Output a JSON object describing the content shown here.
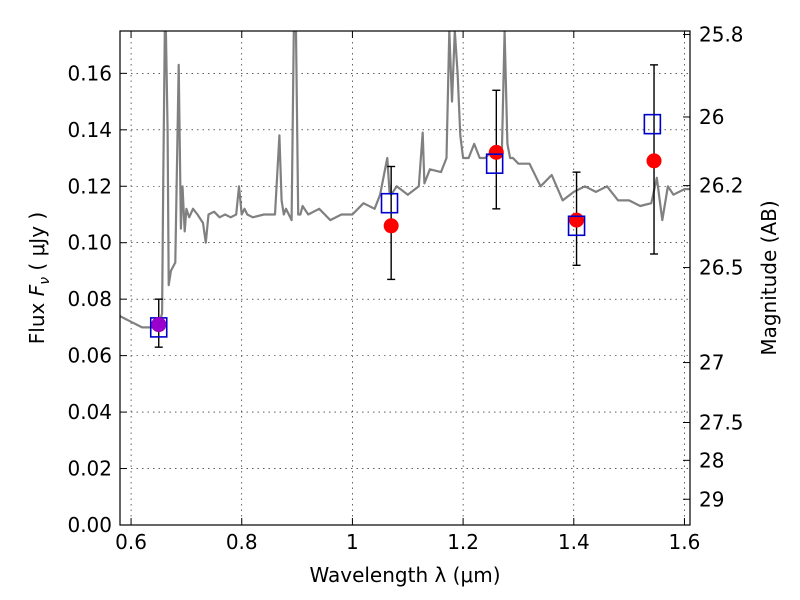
{
  "chart_data": {
    "type": "scatter",
    "xlabel": "Wavelength  λ (μm)",
    "ylabel": "Flux  F_ν  ( μJy )",
    "ylabel_parts": {
      "prefix": "Flux ",
      "f": "F",
      "nu": "ν",
      "suffix": "  ( μJy )"
    },
    "y2label": "Magnitude (AB)",
    "xlim": [
      0.58,
      1.61
    ],
    "ylim": [
      0.0,
      0.175
    ],
    "grid": true,
    "x_ticks": [
      0.6,
      0.8,
      1.0,
      1.2,
      1.4,
      1.6
    ],
    "x_tick_labels": [
      "0.6",
      "0.8",
      "1",
      "1.2",
      "1.4",
      "1.6"
    ],
    "y_ticks": [
      0.0,
      0.02,
      0.04,
      0.06,
      0.08,
      0.1,
      0.12,
      0.14,
      0.16
    ],
    "y_tick_labels": [
      "0.00",
      "0.02",
      "0.04",
      "0.06",
      "0.08",
      "0.10",
      "0.12",
      "0.14",
      "0.16"
    ],
    "y2_ticks": [
      {
        "label": "25.8",
        "mag": 25.8
      },
      {
        "label": "26",
        "mag": 26.0
      },
      {
        "label": "26.2",
        "mag": 26.2
      },
      {
        "label": "26.5",
        "mag": 26.5
      },
      {
        "label": "27",
        "mag": 27.0
      },
      {
        "label": "27.5",
        "mag": 27.5
      },
      {
        "label": "28",
        "mag": 28.0
      },
      {
        "label": "29",
        "mag": 29.0
      }
    ],
    "series": [
      {
        "kind": "line",
        "color": "#808080",
        "x": [
          0.58,
          0.6,
          0.62,
          0.64,
          0.652,
          0.656,
          0.658,
          0.661,
          0.663,
          0.666,
          0.668,
          0.672,
          0.68,
          0.686,
          0.69,
          0.693,
          0.697,
          0.7,
          0.705,
          0.712,
          0.72,
          0.73,
          0.735,
          0.74,
          0.75,
          0.76,
          0.77,
          0.78,
          0.79,
          0.795,
          0.8,
          0.805,
          0.81,
          0.82,
          0.84,
          0.86,
          0.868,
          0.872,
          0.876,
          0.88,
          0.89,
          0.894,
          0.898,
          0.902,
          0.906,
          0.91,
          0.92,
          0.94,
          0.96,
          0.98,
          1.0,
          1.02,
          1.04,
          1.05,
          1.06,
          1.063,
          1.067,
          1.07,
          1.08,
          1.1,
          1.12,
          1.127,
          1.13,
          1.14,
          1.16,
          1.17,
          1.175,
          1.18,
          1.185,
          1.19,
          1.195,
          1.2,
          1.21,
          1.22,
          1.23,
          1.24,
          1.25,
          1.26,
          1.27,
          1.275,
          1.28,
          1.285,
          1.29,
          1.3,
          1.32,
          1.34,
          1.36,
          1.38,
          1.4,
          1.42,
          1.44,
          1.46,
          1.48,
          1.5,
          1.52,
          1.54,
          1.55,
          1.56,
          1.57,
          1.58,
          1.6,
          1.61
        ],
        "y": [
          0.074,
          0.072,
          0.07,
          0.07,
          0.072,
          0.075,
          0.12,
          0.175,
          0.175,
          0.14,
          0.085,
          0.09,
          0.093,
          0.163,
          0.105,
          0.12,
          0.104,
          0.112,
          0.109,
          0.112,
          0.11,
          0.107,
          0.1,
          0.11,
          0.111,
          0.109,
          0.11,
          0.109,
          0.11,
          0.12,
          0.11,
          0.112,
          0.11,
          0.109,
          0.11,
          0.11,
          0.138,
          0.115,
          0.11,
          0.112,
          0.108,
          0.175,
          0.175,
          0.11,
          0.11,
          0.113,
          0.11,
          0.112,
          0.108,
          0.11,
          0.11,
          0.114,
          0.112,
          0.117,
          0.127,
          0.13,
          0.118,
          0.117,
          0.12,
          0.117,
          0.12,
          0.139,
          0.121,
          0.126,
          0.125,
          0.13,
          0.175,
          0.15,
          0.175,
          0.16,
          0.138,
          0.13,
          0.13,
          0.135,
          0.13,
          0.13,
          0.132,
          0.13,
          0.131,
          0.175,
          0.135,
          0.13,
          0.13,
          0.128,
          0.128,
          0.12,
          0.124,
          0.115,
          0.118,
          0.12,
          0.118,
          0.12,
          0.115,
          0.115,
          0.113,
          0.114,
          0.123,
          0.108,
          0.12,
          0.117,
          0.119,
          0.119
        ]
      },
      {
        "kind": "points",
        "marker": "circle",
        "color": "#ff0000",
        "x": [
          0.65,
          1.07,
          1.26,
          1.405,
          1.545
        ],
        "y": [
          0.071,
          0.106,
          0.132,
          0.108,
          0.129
        ],
        "yerr_low": [
          0.063,
          0.087,
          0.112,
          0.092,
          0.096
        ],
        "yerr_high": [
          0.08,
          0.127,
          0.154,
          0.125,
          0.163
        ]
      },
      {
        "kind": "points",
        "marker": "open-square",
        "color": "#0000cc",
        "x": [
          0.65,
          1.067,
          1.257,
          1.405,
          1.542
        ],
        "y": [
          0.07,
          0.114,
          0.128,
          0.106,
          0.142
        ]
      },
      {
        "kind": "points",
        "marker": "circle",
        "color": "#9900cc",
        "x": [
          0.65
        ],
        "y": [
          0.071
        ]
      }
    ]
  }
}
